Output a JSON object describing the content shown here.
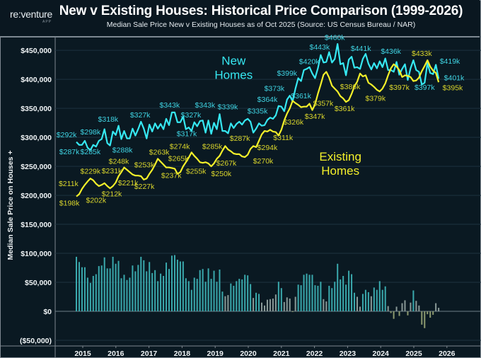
{
  "header": {
    "logo": "re:venture",
    "logo_sub": "APP",
    "title": "New v Existing Houses: Historical Price Comparison (1999-2026)",
    "subtitle": "Median Sale Price New v Existing Houses as of Oct 2025 (Source: US Census Bureau / NAR)"
  },
  "chart_data": {
    "type": "line",
    "title": "New v Existing Houses: Historical Price Comparison (1999-2026)",
    "ylabel": "Median Sale Price on Houses",
    "ylabel_suffix": "+",
    "x_start": "Jan 2015",
    "x_end": "Oct 2025",
    "x_unit": "month index from Jan 2015",
    "ylim_k": [
      -61,
      464
    ],
    "grid": true,
    "colors": {
      "new": "#36e8f2",
      "existing": "#f4f02a",
      "new_label": "#3fd3e2",
      "existing_label": "#d9d52c",
      "bar_pos": "#3aa9ad",
      "bar_low": "#8a9a98",
      "bar_neg": "#8d9a70",
      "grid": "#1d3340"
    },
    "y_ticks": [
      {
        "value": 450,
        "label": "$450,000"
      },
      {
        "value": 400,
        "label": "$400,000"
      },
      {
        "value": 350,
        "label": "$350,000"
      },
      {
        "value": 300,
        "label": "$300,000"
      },
      {
        "value": 250,
        "label": "$250,000"
      },
      {
        "value": 200,
        "label": "$200,000"
      },
      {
        "value": 150,
        "label": "$150,000"
      },
      {
        "value": 100,
        "label": "$100,000"
      },
      {
        "value": 50,
        "label": "$50,000"
      },
      {
        "value": 0,
        "label": "$0"
      },
      {
        "value": -50,
        "label": "($50,000)"
      }
    ],
    "x_ticks": [
      "2015",
      "2016",
      "2017",
      "2018",
      "2019",
      "2020",
      "2021",
      "2022",
      "2023",
      "2024",
      "2025",
      "2026"
    ],
    "existing_k": [
      198,
      202,
      211,
      218,
      224,
      229,
      226,
      220,
      216,
      218,
      221,
      216,
      212,
      216,
      222,
      233,
      240,
      248,
      244,
      240,
      236,
      234,
      234,
      233,
      227,
      229,
      237,
      244,
      253,
      263,
      258,
      253,
      248,
      248,
      247,
      246,
      237,
      240,
      250,
      257,
      265,
      274,
      268,
      263,
      257,
      256,
      257,
      255,
      250,
      255,
      263,
      268,
      277,
      285,
      279,
      276,
      272,
      271,
      271,
      267,
      266,
      270,
      280,
      285,
      283,
      294,
      305,
      311,
      310,
      313,
      310,
      309,
      303,
      313,
      329,
      341,
      350,
      363,
      359,
      356,
      352,
      353,
      353,
      358,
      347,
      357,
      375,
      391,
      408,
      413,
      403,
      389,
      384,
      379,
      371,
      367,
      361,
      364,
      375,
      388,
      396,
      410,
      405,
      407,
      394,
      391,
      387,
      382,
      379,
      384,
      393,
      407,
      419,
      426,
      422,
      416,
      404,
      407,
      406,
      404,
      397,
      398,
      403,
      414,
      423,
      433,
      422,
      415,
      411,
      395
    ],
    "difference_k": [
      94,
      85,
      76,
      76,
      58,
      49,
      61,
      64,
      78,
      79,
      93,
      74,
      74,
      94,
      82,
      87,
      57,
      63,
      54,
      58,
      79,
      69,
      80,
      94,
      88,
      69,
      85,
      66,
      71,
      52,
      65,
      61,
      84,
      73,
      96,
      97,
      89,
      86,
      86,
      57,
      52,
      37,
      58,
      56,
      71,
      73,
      51,
      74,
      56,
      70,
      51,
      72,
      34,
      26,
      28,
      48,
      44,
      52,
      56,
      55,
      63,
      62,
      47,
      23,
      32,
      30,
      15,
      10,
      20,
      21,
      22,
      29,
      51,
      40,
      16,
      24,
      22,
      -1,
      25,
      46,
      45,
      63,
      65,
      63,
      63,
      45,
      44,
      51,
      21,
      17,
      44,
      40,
      51,
      82,
      55,
      61,
      46,
      70,
      64,
      32,
      25,
      8,
      30,
      37,
      33,
      26,
      41,
      37,
      52,
      37,
      43,
      9,
      -3,
      -13,
      8,
      -8,
      14,
      19,
      -7,
      15,
      36,
      18,
      10,
      -23,
      -29,
      -5,
      -11,
      -6,
      14,
      6
    ],
    "series_note": "New home price = existing_k + difference_k (bars show New minus Existing)",
    "legend": {
      "new": "New Homes",
      "existing": "Existing Homes"
    },
    "annotations_new": [
      {
        "text": "$292k",
        "m": -3.5,
        "v": 305
      },
      {
        "text": "$287k",
        "m": -2.5,
        "v": 276
      },
      {
        "text": "$298k",
        "m": 5,
        "v": 310
      },
      {
        "text": "$285k",
        "m": 5,
        "v": 276
      },
      {
        "text": "$318k",
        "m": 11.3,
        "v": 332
      },
      {
        "text": "$288k",
        "m": 16.4,
        "v": 279
      },
      {
        "text": "$327k",
        "m": 22.7,
        "v": 339
      },
      {
        "text": "$343k",
        "m": 33.2,
        "v": 356
      },
      {
        "text": "$317k",
        "m": 39.3,
        "v": 307
      },
      {
        "text": "$327k",
        "m": 40.8,
        "v": 339
      },
      {
        "text": "$343k",
        "m": 45.8,
        "v": 356
      },
      {
        "text": "$339k",
        "m": 53.9,
        "v": 353
      },
      {
        "text": "$335k",
        "m": 64.5,
        "v": 346
      },
      {
        "text": "$364k",
        "m": 68,
        "v": 366
      },
      {
        "text": "$373k",
        "m": 70.5,
        "v": 385
      },
      {
        "text": "$399k",
        "m": 75,
        "v": 411
      },
      {
        "text": "$361k",
        "m": 80,
        "v": 372
      },
      {
        "text": "$420k",
        "m": 82.9,
        "v": 431
      },
      {
        "text": "$443k",
        "m": 86.6,
        "v": 456
      },
      {
        "text": "$460k",
        "m": 92,
        "v": 473
      },
      {
        "text": "$441k",
        "m": 101.3,
        "v": 454
      },
      {
        "text": "$436k",
        "m": 112,
        "v": 449
      },
      {
        "text": "$397k",
        "m": 124,
        "v": 387
      },
      {
        "text": "$419k",
        "m": 133,
        "v": 432
      },
      {
        "text": "$401k",
        "m": 134.5,
        "v": 403
      }
    ],
    "annotations_existing": [
      {
        "text": "$211k",
        "m": -2.8,
        "v": 221
      },
      {
        "text": "$198k",
        "m": -2.5,
        "v": 187
      },
      {
        "text": "$229k",
        "m": 5,
        "v": 242
      },
      {
        "text": "$202k",
        "m": 7,
        "v": 192
      },
      {
        "text": "$231k",
        "m": 12.6,
        "v": 243
      },
      {
        "text": "$212k",
        "m": 12.6,
        "v": 203
      },
      {
        "text": "$248k",
        "m": 15.1,
        "v": 259
      },
      {
        "text": "$221k",
        "m": 18.4,
        "v": 222
      },
      {
        "text": "$253k",
        "m": 24.2,
        "v": 253
      },
      {
        "text": "$227k",
        "m": 24.2,
        "v": 216
      },
      {
        "text": "$263k",
        "m": 29.5,
        "v": 275
      },
      {
        "text": "$237k",
        "m": 33.8,
        "v": 235
      },
      {
        "text": "$265k",
        "m": 36.3,
        "v": 264
      },
      {
        "text": "$274k",
        "m": 36.8,
        "v": 285
      },
      {
        "text": "$255k",
        "m": 42.6,
        "v": 242
      },
      {
        "text": "$285k",
        "m": 48.4,
        "v": 285
      },
      {
        "text": "$250k",
        "m": 51.6,
        "v": 238
      },
      {
        "text": "$267k",
        "m": 53.4,
        "v": 256
      },
      {
        "text": "$287k",
        "m": 58.2,
        "v": 299
      },
      {
        "text": "$270k",
        "m": 66.5,
        "v": 260
      },
      {
        "text": "$294k",
        "m": 68,
        "v": 283
      },
      {
        "text": "$311k",
        "m": 73.6,
        "v": 300
      },
      {
        "text": "$326k",
        "m": 77.3,
        "v": 327
      },
      {
        "text": "$347k",
        "m": 84.9,
        "v": 337
      },
      {
        "text": "$357k",
        "m": 87.9,
        "v": 359
      },
      {
        "text": "$361k",
        "m": 95.5,
        "v": 350
      },
      {
        "text": "$386k",
        "m": 97.5,
        "v": 388
      },
      {
        "text": "$379k",
        "m": 106.5,
        "v": 368
      },
      {
        "text": "$397k",
        "m": 115,
        "v": 387
      },
      {
        "text": "$433k",
        "m": 123,
        "v": 445
      },
      {
        "text": "$395k",
        "m": 134,
        "v": 386
      }
    ],
    "series_labels": [
      {
        "lines": [
          "New",
          "Homes"
        ],
        "series": "new",
        "m": 56,
        "v": 430
      },
      {
        "lines": [
          "Existing",
          "Homes"
        ],
        "series": "existing",
        "m": 94,
        "v": 265
      }
    ]
  }
}
